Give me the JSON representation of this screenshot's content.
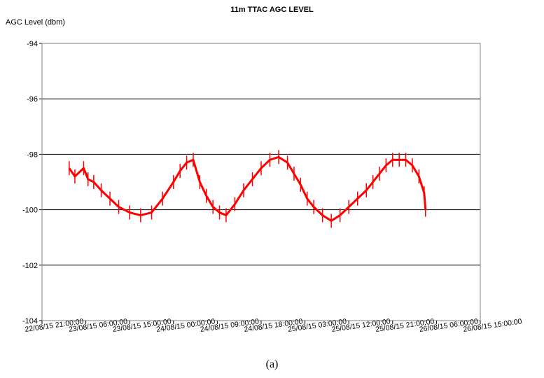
{
  "caption": "(a)",
  "chart_data": {
    "type": "line",
    "title": "11m TTAC AGC LEVEL",
    "ylabel": "AGC Level (dbm)",
    "xlabel": "",
    "ylim": [
      -104,
      -94
    ],
    "yticks": [
      -94,
      -96,
      -98,
      -100,
      -102,
      -104
    ],
    "xticks": [
      "22/08/15 21:00:00",
      "23/08/15 06:00:00",
      "23/08/15 15:00:00",
      "24/08/15 00:00:00",
      "24/08/15 09:00:00",
      "24/08/15 18:00:00",
      "25/08/15 03:00:00",
      "25/08/15 12:00:00",
      "25/08/15 21:00:00",
      "26/08/15 06:00:00",
      "26/08/15 15:00:00"
    ],
    "x_unit_hours_per_tick": 9,
    "grid": "horizontal",
    "legend": "none",
    "series_color": "#ff0000",
    "series": [
      {
        "x": [
          0.62,
          0.75,
          0.95,
          1.05,
          1.18,
          1.35,
          1.55,
          1.75,
          2.0,
          2.25,
          2.5,
          2.75,
          3.0,
          3.15,
          3.3,
          3.45,
          3.6,
          3.75,
          3.9,
          4.05,
          4.2,
          4.4,
          4.6,
          4.8,
          5.0,
          5.2,
          5.4,
          5.6,
          5.75,
          5.9,
          6.05,
          6.2,
          6.4,
          6.6,
          6.8,
          7.0,
          7.2,
          7.4,
          7.55,
          7.7,
          7.85,
          8.0,
          8.15,
          8.3,
          8.45,
          8.6,
          8.72,
          8.75
        ],
        "y": [
          -98.5,
          -98.8,
          -98.5,
          -98.9,
          -99.0,
          -99.3,
          -99.6,
          -99.9,
          -100.1,
          -100.2,
          -100.1,
          -99.6,
          -99.0,
          -98.6,
          -98.3,
          -98.2,
          -99.0,
          -99.5,
          -99.9,
          -100.1,
          -100.2,
          -99.8,
          -99.3,
          -98.9,
          -98.5,
          -98.2,
          -98.1,
          -98.3,
          -98.7,
          -99.1,
          -99.6,
          -99.9,
          -100.2,
          -100.4,
          -100.2,
          -99.9,
          -99.6,
          -99.3,
          -99.0,
          -98.7,
          -98.4,
          -98.2,
          -98.2,
          -98.2,
          -98.4,
          -98.8,
          -99.4,
          -100.0
        ]
      }
    ]
  }
}
